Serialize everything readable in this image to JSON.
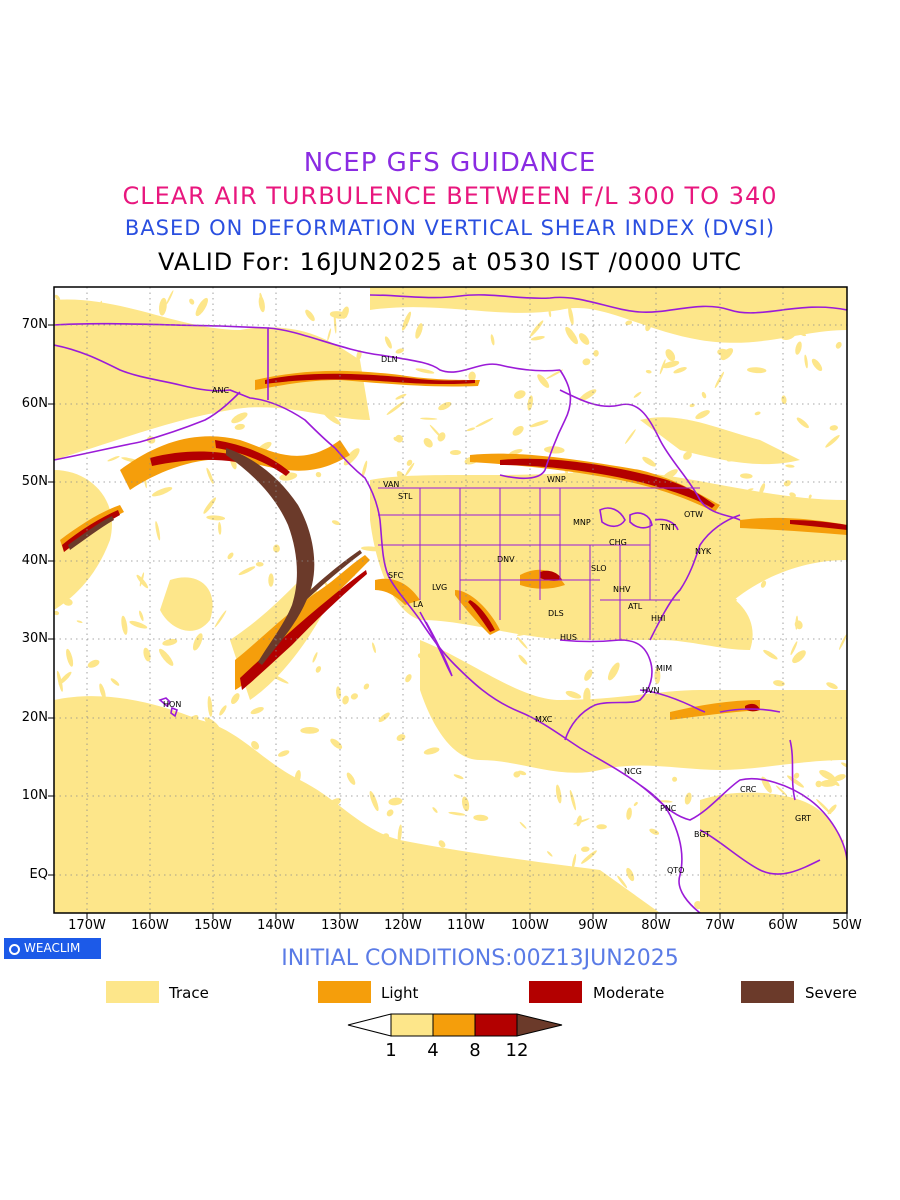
{
  "header": {
    "title_line1": "NCEP GFS GUIDANCE",
    "title_line2": "CLEAR AIR TURBULENCE BETWEEN F/L 300 TO 340",
    "title_line3": "BASED ON DEFORMATION VERTICAL SHEAR INDEX (DVSI)",
    "title_line4": "VALID For: 16JUN2025 at 0530 IST /0000 UTC"
  },
  "map": {
    "lat_labels": [
      "70N",
      "60N",
      "50N",
      "40N",
      "30N",
      "20N",
      "10N",
      "EQ"
    ],
    "lon_labels": [
      "170W",
      "160W",
      "150W",
      "140W",
      "130W",
      "120W",
      "110W",
      "100W",
      "90W",
      "80W",
      "70W",
      "60W",
      "50W"
    ],
    "cities": [
      "ANC",
      "DLN",
      "VAN",
      "STL",
      "WNP",
      "MNP",
      "TNT",
      "OTW",
      "CHG",
      "NYK",
      "DNV",
      "SFC",
      "LVG",
      "LA",
      "SLO",
      "NHV",
      "ATL",
      "HHI",
      "DLS",
      "HUS",
      "MIM",
      "HVN",
      "HON",
      "MXC",
      "NCG",
      "PNC",
      "CRC",
      "GRT",
      "BGT",
      "QTO"
    ],
    "colors": {
      "trace": "#fde68a",
      "light": "#f59e0b",
      "moderate": "#b30000",
      "severe": "#6b3a2a",
      "boundaries": "#9b1bd8",
      "grid": "#8a8a8a"
    }
  },
  "footer": {
    "brand": "WEACLIM",
    "initial_conditions": "INITIAL CONDITIONS:00Z13JUN2025"
  },
  "legend": {
    "items": [
      {
        "label": "Trace",
        "color": "#fde68a"
      },
      {
        "label": "Light",
        "color": "#f59e0b"
      },
      {
        "label": "Moderate",
        "color": "#b30000"
      },
      {
        "label": "Severe",
        "color": "#6b3a2a"
      }
    ],
    "colorbar_ticks": [
      "1",
      "4",
      "8",
      "12"
    ]
  }
}
